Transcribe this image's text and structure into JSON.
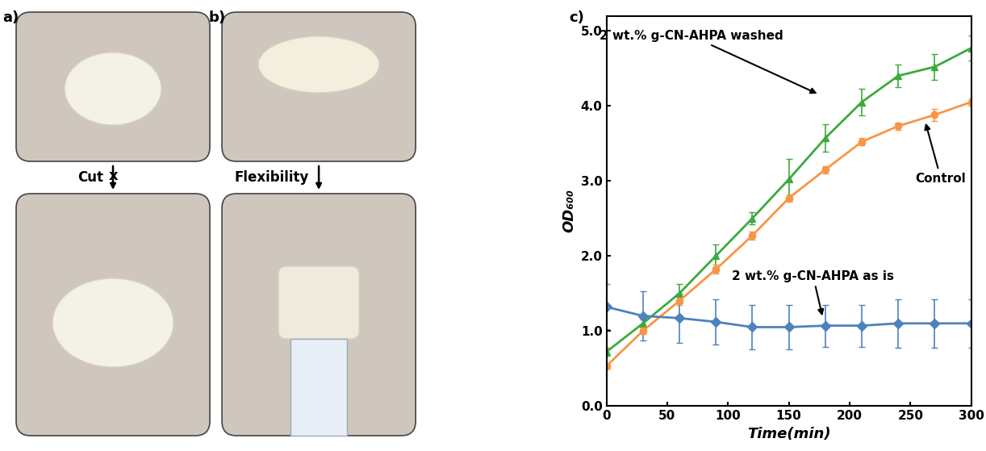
{
  "panels": {
    "a": {
      "label": "a)",
      "action": "Cut"
    },
    "b": {
      "label": "b)",
      "action": "Flexibility"
    },
    "c": {
      "label": "c)"
    }
  },
  "chart_data": {
    "type": "line",
    "x_label": "Time(min)",
    "y_label": "OD₆₀₀",
    "x": [
      0,
      30,
      60,
      90,
      120,
      150,
      180,
      210,
      240,
      270,
      300
    ],
    "series": [
      {
        "name": "2 wt.% g-CN-AHPA washed",
        "color": "#3daa3d",
        "marker": "triangle",
        "values": [
          0.72,
          1.1,
          1.5,
          2.0,
          2.5,
          3.02,
          3.57,
          4.05,
          4.4,
          4.52,
          4.77
        ],
        "errors": [
          0.05,
          0.05,
          0.12,
          0.15,
          0.08,
          0.27,
          0.18,
          0.18,
          0.15,
          0.17,
          0.17
        ]
      },
      {
        "name": "Control",
        "color": "#f79646",
        "marker": "circle",
        "values": [
          0.53,
          1.0,
          1.4,
          1.82,
          2.27,
          2.77,
          3.15,
          3.52,
          3.73,
          3.88,
          4.05
        ],
        "errors": [
          0.03,
          0.04,
          0.05,
          0.06,
          0.05,
          0.05,
          0.05,
          0.05,
          0.05,
          0.08,
          0.05
        ]
      },
      {
        "name": "2 wt.% g-CN-AHPA as is",
        "color": "#4f81bd",
        "marker": "diamond",
        "values": [
          1.32,
          1.2,
          1.17,
          1.12,
          1.05,
          1.05,
          1.07,
          1.07,
          1.1,
          1.1,
          1.1
        ],
        "errors": [
          0.3,
          0.33,
          0.33,
          0.3,
          0.3,
          0.3,
          0.28,
          0.28,
          0.32,
          0.32,
          0.32
        ]
      }
    ],
    "xlim": [
      0,
      300
    ],
    "xticks": [
      0,
      50,
      100,
      150,
      200,
      250,
      300
    ],
    "ylim": [
      0,
      5.2
    ],
    "yticks": [
      {
        "value": 0,
        "label": "0.0"
      },
      {
        "value": 1,
        "label": "1.0"
      },
      {
        "value": 2,
        "label": "2.0"
      },
      {
        "value": 3,
        "label": "3.0"
      },
      {
        "value": 4,
        "label": "4.0"
      },
      {
        "value": 5,
        "label": "5.0"
      }
    ],
    "grid": false
  }
}
